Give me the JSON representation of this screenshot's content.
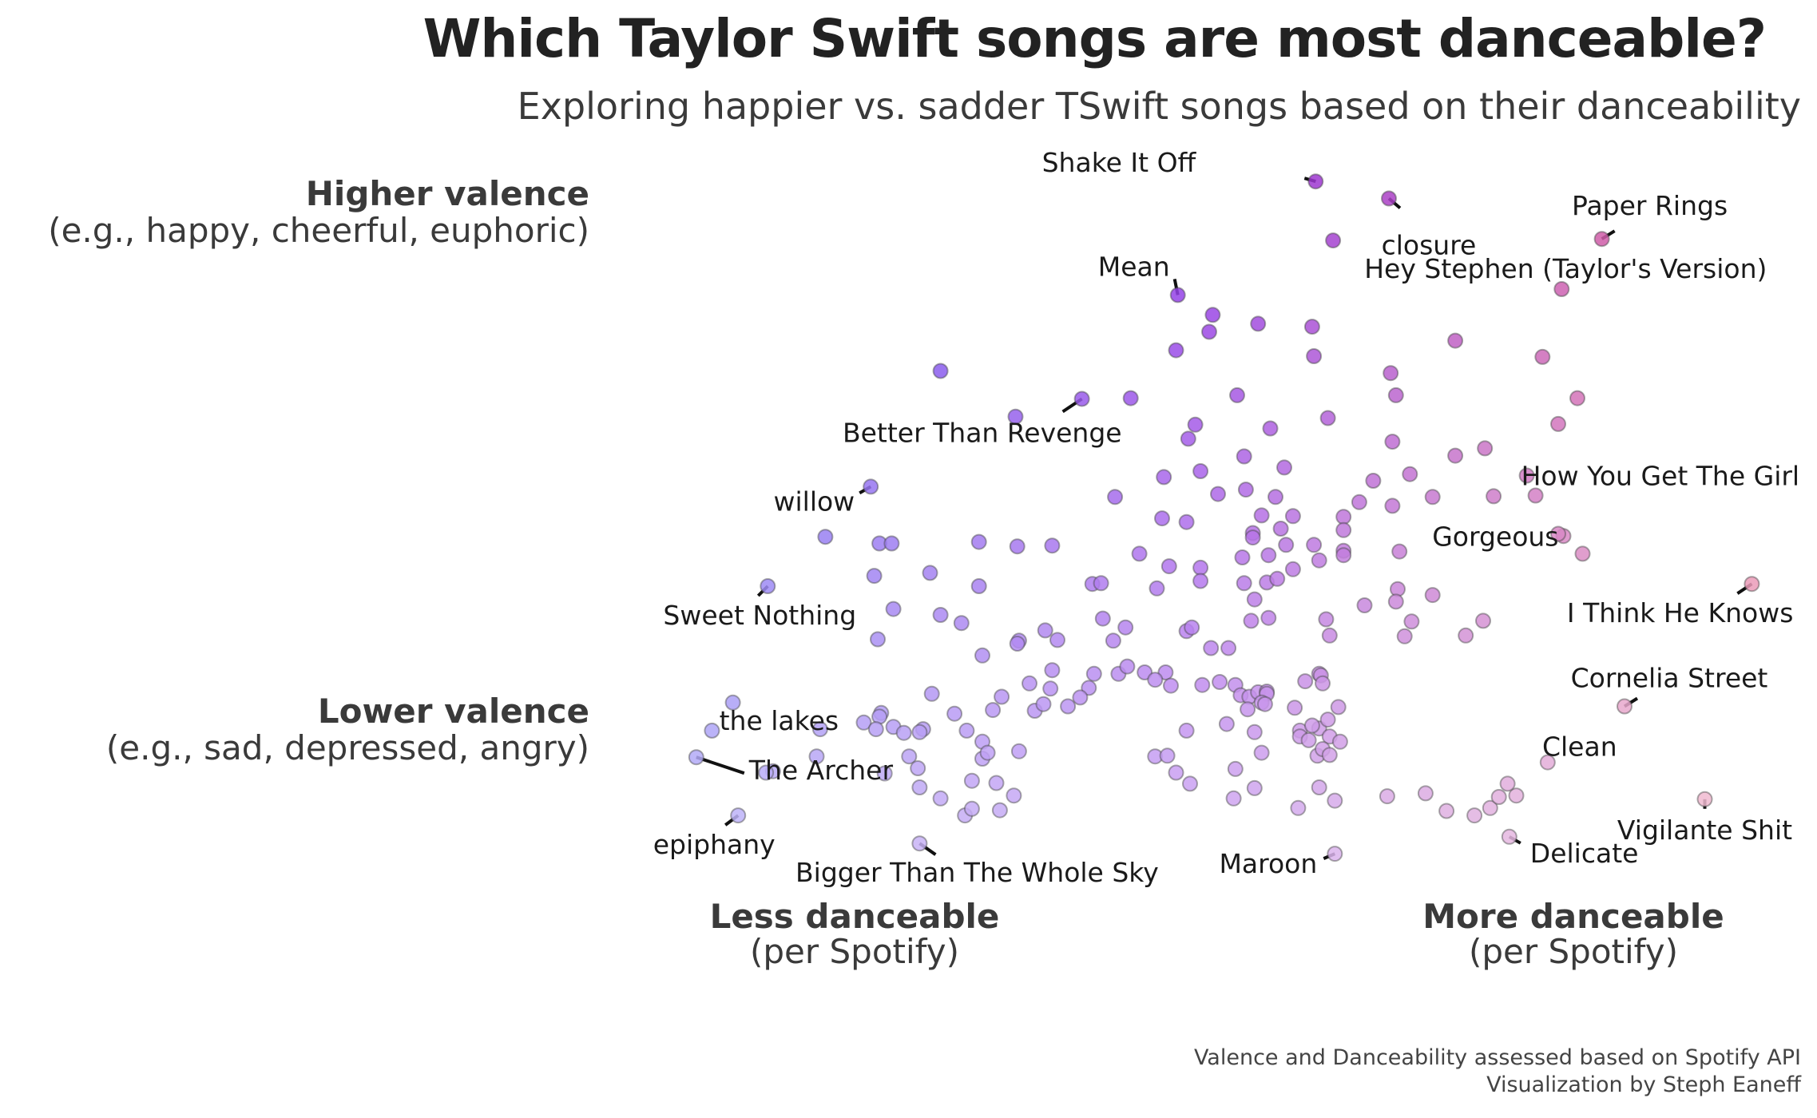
{
  "chart_data": {
    "type": "scatter",
    "title": "Which Taylor Swift songs are most danceable?",
    "subtitle": "Exploring happier vs. sadder TSwift songs based on their danceability",
    "xlabel_low": {
      "bold": "Less danceable",
      "sub": "(per Spotify)"
    },
    "xlabel_high": {
      "bold": "More danceable",
      "sub": "(per Spotify)"
    },
    "ylabel_high": {
      "bold": "Higher valence",
      "sub": "(e.g., happy, cheerful, euphoric)"
    },
    "ylabel_low": {
      "bold": "Lower valence",
      "sub": "(e.g., sad, depressed, angry)"
    },
    "caption": [
      "Valence and Danceability assessed based on Spotify API",
      "Visualization by Steph Eaneff"
    ],
    "xlim": [
      0.25,
      0.9
    ],
    "ylim": [
      0.03,
      0.94
    ],
    "colors": {
      "low_dance": "#5b4cf0",
      "mid": "#8a2be2",
      "high_dance": "#e06090",
      "outline": "#444444"
    },
    "labeled_points": [
      {
        "name": "Shake It Off",
        "x": 0.647,
        "y": 0.943
      },
      {
        "name": "closure",
        "x": 0.689,
        "y": 0.92
      },
      {
        "name": "Paper Rings",
        "x": 0.811,
        "y": 0.865
      },
      {
        "name": "Mean",
        "x": 0.568,
        "y": 0.789
      },
      {
        "name": "Hey Stephen (Taylor's Version)",
        "x": 0.788,
        "y": 0.797
      },
      {
        "name": "Better Than Revenge",
        "x": 0.513,
        "y": 0.648
      },
      {
        "name": "How You Get The Girl",
        "x": 0.768,
        "y": 0.544
      },
      {
        "name": "willow",
        "x": 0.392,
        "y": 0.529
      },
      {
        "name": "Gorgeous",
        "x": 0.8,
        "y": 0.438
      },
      {
        "name": "I Think He Knows",
        "x": 0.897,
        "y": 0.397
      },
      {
        "name": "Sweet Nothing",
        "x": 0.333,
        "y": 0.394
      },
      {
        "name": "Cornelia Street",
        "x": 0.824,
        "y": 0.231
      },
      {
        "name": "the lakes",
        "x": 0.313,
        "y": 0.236
      },
      {
        "name": "Clean",
        "x": 0.78,
        "y": 0.155
      },
      {
        "name": "Vigilante Shit",
        "x": 0.87,
        "y": 0.105
      },
      {
        "name": "The Archer",
        "x": 0.292,
        "y": 0.162
      },
      {
        "name": "epiphany",
        "x": 0.316,
        "y": 0.083
      },
      {
        "name": "Bigger Than The Whole Sky",
        "x": 0.42,
        "y": 0.045
      },
      {
        "name": "Maroon",
        "x": 0.658,
        "y": 0.031
      },
      {
        "name": "Delicate",
        "x": 0.758,
        "y": 0.054
      }
    ],
    "points": [
      [
        0.657,
        0.863
      ],
      [
        0.588,
        0.762
      ],
      [
        0.586,
        0.739
      ],
      [
        0.645,
        0.746
      ],
      [
        0.567,
        0.714
      ],
      [
        0.614,
        0.75
      ],
      [
        0.727,
        0.727
      ],
      [
        0.541,
        0.649
      ],
      [
        0.602,
        0.653
      ],
      [
        0.646,
        0.706
      ],
      [
        0.69,
        0.683
      ],
      [
        0.777,
        0.705
      ],
      [
        0.797,
        0.649
      ],
      [
        0.786,
        0.614
      ],
      [
        0.693,
        0.653
      ],
      [
        0.578,
        0.613
      ],
      [
        0.621,
        0.608
      ],
      [
        0.654,
        0.622
      ],
      [
        0.475,
        0.624
      ],
      [
        0.574,
        0.594
      ],
      [
        0.691,
        0.59
      ],
      [
        0.727,
        0.571
      ],
      [
        0.581,
        0.55
      ],
      [
        0.606,
        0.57
      ],
      [
        0.629,
        0.555
      ],
      [
        0.56,
        0.542
      ],
      [
        0.591,
        0.519
      ],
      [
        0.607,
        0.525
      ],
      [
        0.68,
        0.537
      ],
      [
        0.672,
        0.508
      ],
      [
        0.701,
        0.546
      ],
      [
        0.714,
        0.515
      ],
      [
        0.749,
        0.516
      ],
      [
        0.532,
        0.515
      ],
      [
        0.559,
        0.486
      ],
      [
        0.616,
        0.49
      ],
      [
        0.624,
        0.515
      ],
      [
        0.634,
        0.489
      ],
      [
        0.663,
        0.488
      ],
      [
        0.627,
        0.472
      ],
      [
        0.611,
        0.466
      ],
      [
        0.573,
        0.481
      ],
      [
        0.63,
        0.45
      ],
      [
        0.646,
        0.45
      ],
      [
        0.663,
        0.47
      ],
      [
        0.663,
        0.442
      ],
      [
        0.691,
        0.503
      ],
      [
        0.695,
        0.441
      ],
      [
        0.789,
        0.462
      ],
      [
        0.773,
        0.517
      ],
      [
        0.744,
        0.581
      ],
      [
        0.786,
        0.465
      ],
      [
        0.432,
        0.686
      ],
      [
        0.366,
        0.461
      ],
      [
        0.397,
        0.452
      ],
      [
        0.404,
        0.452
      ],
      [
        0.454,
        0.454
      ],
      [
        0.476,
        0.448
      ],
      [
        0.496,
        0.449
      ],
      [
        0.546,
        0.438
      ],
      [
        0.563,
        0.421
      ],
      [
        0.581,
        0.419
      ],
      [
        0.605,
        0.433
      ],
      [
        0.611,
        0.46
      ],
      [
        0.62,
        0.436
      ],
      [
        0.634,
        0.417
      ],
      [
        0.649,
        0.429
      ],
      [
        0.663,
        0.436
      ],
      [
        0.694,
        0.39
      ],
      [
        0.714,
        0.382
      ],
      [
        0.394,
        0.408
      ],
      [
        0.426,
        0.412
      ],
      [
        0.454,
        0.394
      ],
      [
        0.519,
        0.397
      ],
      [
        0.524,
        0.398
      ],
      [
        0.556,
        0.391
      ],
      [
        0.581,
        0.401
      ],
      [
        0.606,
        0.398
      ],
      [
        0.619,
        0.399
      ],
      [
        0.625,
        0.404
      ],
      [
        0.612,
        0.376
      ],
      [
        0.405,
        0.363
      ],
      [
        0.432,
        0.355
      ],
      [
        0.444,
        0.344
      ],
      [
        0.396,
        0.322
      ],
      [
        0.477,
        0.32
      ],
      [
        0.492,
        0.334
      ],
      [
        0.499,
        0.321
      ],
      [
        0.525,
        0.35
      ],
      [
        0.538,
        0.338
      ],
      [
        0.531,
        0.32
      ],
      [
        0.573,
        0.333
      ],
      [
        0.576,
        0.338
      ],
      [
        0.587,
        0.31
      ],
      [
        0.597,
        0.31
      ],
      [
        0.61,
        0.347
      ],
      [
        0.62,
        0.351
      ],
      [
        0.653,
        0.349
      ],
      [
        0.655,
        0.327
      ],
      [
        0.675,
        0.368
      ],
      [
        0.693,
        0.373
      ],
      [
        0.702,
        0.346
      ],
      [
        0.698,
        0.326
      ],
      [
        0.733,
        0.327
      ],
      [
        0.743,
        0.347
      ],
      [
        0.496,
        0.28
      ],
      [
        0.52,
        0.275
      ],
      [
        0.534,
        0.275
      ],
      [
        0.539,
        0.285
      ],
      [
        0.549,
        0.277
      ],
      [
        0.561,
        0.277
      ],
      [
        0.564,
        0.259
      ],
      [
        0.582,
        0.26
      ],
      [
        0.456,
        0.3
      ],
      [
        0.476,
        0.316
      ],
      [
        0.495,
        0.255
      ],
      [
        0.517,
        0.256
      ],
      [
        0.483,
        0.262
      ],
      [
        0.467,
        0.244
      ],
      [
        0.505,
        0.231
      ],
      [
        0.512,
        0.243
      ],
      [
        0.555,
        0.267
      ],
      [
        0.592,
        0.264
      ],
      [
        0.601,
        0.26
      ],
      [
        0.604,
        0.246
      ],
      [
        0.609,
        0.244
      ],
      [
        0.614,
        0.25
      ],
      [
        0.619,
        0.251
      ],
      [
        0.641,
        0.265
      ],
      [
        0.649,
        0.275
      ],
      [
        0.65,
        0.273
      ],
      [
        0.651,
        0.262
      ],
      [
        0.619,
        0.248
      ],
      [
        0.616,
        0.236
      ],
      [
        0.608,
        0.227
      ],
      [
        0.618,
        0.234
      ],
      [
        0.635,
        0.229
      ],
      [
        0.649,
        0.201
      ],
      [
        0.638,
        0.198
      ],
      [
        0.645,
        0.205
      ],
      [
        0.66,
        0.23
      ],
      [
        0.654,
        0.213
      ],
      [
        0.427,
        0.248
      ],
      [
        0.44,
        0.221
      ],
      [
        0.462,
        0.226
      ],
      [
        0.486,
        0.225
      ],
      [
        0.491,
        0.234
      ],
      [
        0.422,
        0.2
      ],
      [
        0.456,
        0.183
      ],
      [
        0.398,
        0.222
      ],
      [
        0.42,
        0.196
      ],
      [
        0.456,
        0.16
      ],
      [
        0.447,
        0.198
      ],
      [
        0.477,
        0.17
      ],
      [
        0.414,
        0.163
      ],
      [
        0.405,
        0.203
      ],
      [
        0.411,
        0.195
      ],
      [
        0.459,
        0.168
      ],
      [
        0.363,
        0.2
      ],
      [
        0.397,
        0.217
      ],
      [
        0.388,
        0.209
      ],
      [
        0.555,
        0.163
      ],
      [
        0.562,
        0.164
      ],
      [
        0.573,
        0.198
      ],
      [
        0.596,
        0.207
      ],
      [
        0.612,
        0.196
      ],
      [
        0.638,
        0.19
      ],
      [
        0.643,
        0.185
      ],
      [
        0.655,
        0.19
      ],
      [
        0.661,
        0.183
      ],
      [
        0.601,
        0.146
      ],
      [
        0.616,
        0.168
      ],
      [
        0.648,
        0.164
      ],
      [
        0.651,
        0.173
      ],
      [
        0.655,
        0.165
      ],
      [
        0.42,
        0.121
      ],
      [
        0.432,
        0.106
      ],
      [
        0.446,
        0.083
      ],
      [
        0.45,
        0.092
      ],
      [
        0.466,
        0.09
      ],
      [
        0.464,
        0.127
      ],
      [
        0.474,
        0.11
      ],
      [
        0.395,
        0.2
      ],
      [
        0.45,
        0.13
      ],
      [
        0.567,
        0.141
      ],
      [
        0.575,
        0.126
      ],
      [
        0.612,
        0.12
      ],
      [
        0.637,
        0.093
      ],
      [
        0.649,
        0.121
      ],
      [
        0.658,
        0.103
      ],
      [
        0.71,
        0.113
      ],
      [
        0.722,
        0.089
      ],
      [
        0.747,
        0.093
      ],
      [
        0.752,
        0.108
      ],
      [
        0.738,
        0.083
      ],
      [
        0.762,
        0.11
      ],
      [
        0.6,
        0.106
      ],
      [
        0.688,
        0.109
      ],
      [
        0.757,
        0.126
      ],
      [
        0.419,
        0.147
      ],
      [
        0.4,
        0.14
      ],
      [
        0.361,
        0.163
      ],
      [
        0.336,
        0.143
      ],
      [
        0.332,
        0.141
      ],
      [
        0.301,
        0.198
      ]
    ]
  }
}
